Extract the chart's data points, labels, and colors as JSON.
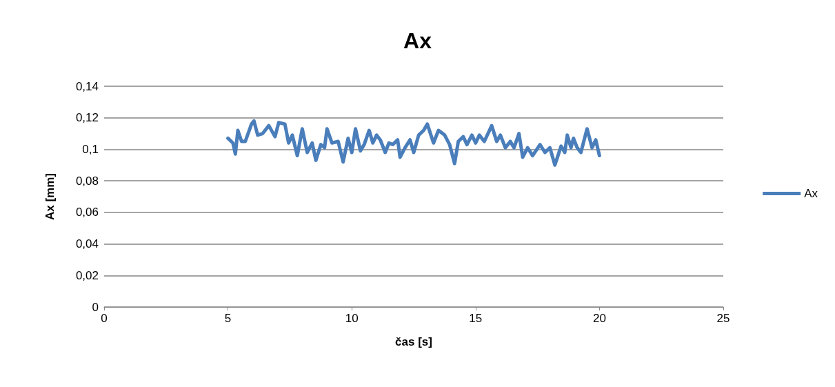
{
  "chart_data": {
    "type": "line",
    "title": "Ax",
    "xlabel": "čas [s]",
    "ylabel": "Ax [mm]",
    "xlim": [
      0,
      25
    ],
    "xticks": [
      0,
      5,
      10,
      15,
      20,
      25
    ],
    "ylim": [
      0,
      0.14
    ],
    "yticks": [
      {
        "value": 0,
        "label": "0"
      },
      {
        "value": 0.02,
        "label": "0,02"
      },
      {
        "value": 0.04,
        "label": "0,04"
      },
      {
        "value": 0.06,
        "label": "0,06"
      },
      {
        "value": 0.08,
        "label": "0,08"
      },
      {
        "value": 0.1,
        "label": "0,1"
      },
      {
        "value": 0.12,
        "label": "0,12"
      },
      {
        "value": 0.14,
        "label": "0,14"
      }
    ],
    "grid": "y",
    "legend": "right",
    "marker": "none",
    "line_style": "solid",
    "x": [
      5.0,
      5.2,
      5.3,
      5.4,
      5.55,
      5.7,
      5.95,
      6.05,
      6.2,
      6.4,
      6.65,
      6.9,
      7.05,
      7.3,
      7.45,
      7.6,
      7.8,
      8.0,
      8.2,
      8.4,
      8.55,
      8.75,
      8.9,
      9.0,
      9.2,
      9.45,
      9.65,
      9.85,
      10.0,
      10.15,
      10.35,
      10.5,
      10.7,
      10.85,
      11.0,
      11.15,
      11.35,
      11.5,
      11.65,
      11.85,
      11.95,
      12.15,
      12.35,
      12.5,
      12.7,
      12.9,
      13.05,
      13.3,
      13.5,
      13.75,
      13.95,
      14.15,
      14.3,
      14.5,
      14.65,
      14.85,
      15.0,
      15.15,
      15.35,
      15.65,
      15.85,
      16.0,
      16.2,
      16.4,
      16.55,
      16.75,
      16.9,
      17.1,
      17.3,
      17.6,
      17.8,
      18.0,
      18.2,
      18.45,
      18.6,
      18.7,
      18.85,
      18.95,
      19.1,
      19.25,
      19.5,
      19.7,
      19.85,
      20.0
    ],
    "series": [
      {
        "name": "Ax",
        "color": "#4a7ebb",
        "values": [
          0.107,
          0.104,
          0.097,
          0.112,
          0.105,
          0.105,
          0.116,
          0.118,
          0.109,
          0.11,
          0.115,
          0.108,
          0.117,
          0.116,
          0.104,
          0.109,
          0.096,
          0.113,
          0.098,
          0.104,
          0.093,
          0.103,
          0.101,
          0.113,
          0.104,
          0.105,
          0.092,
          0.107,
          0.098,
          0.113,
          0.099,
          0.103,
          0.112,
          0.104,
          0.109,
          0.106,
          0.098,
          0.104,
          0.103,
          0.106,
          0.095,
          0.101,
          0.106,
          0.098,
          0.109,
          0.112,
          0.116,
          0.104,
          0.112,
          0.109,
          0.103,
          0.091,
          0.105,
          0.108,
          0.103,
          0.109,
          0.104,
          0.109,
          0.105,
          0.115,
          0.105,
          0.109,
          0.101,
          0.105,
          0.101,
          0.11,
          0.095,
          0.101,
          0.096,
          0.103,
          0.098,
          0.101,
          0.09,
          0.102,
          0.098,
          0.109,
          0.101,
          0.107,
          0.101,
          0.098,
          0.113,
          0.101,
          0.106,
          0.096
        ]
      }
    ]
  }
}
